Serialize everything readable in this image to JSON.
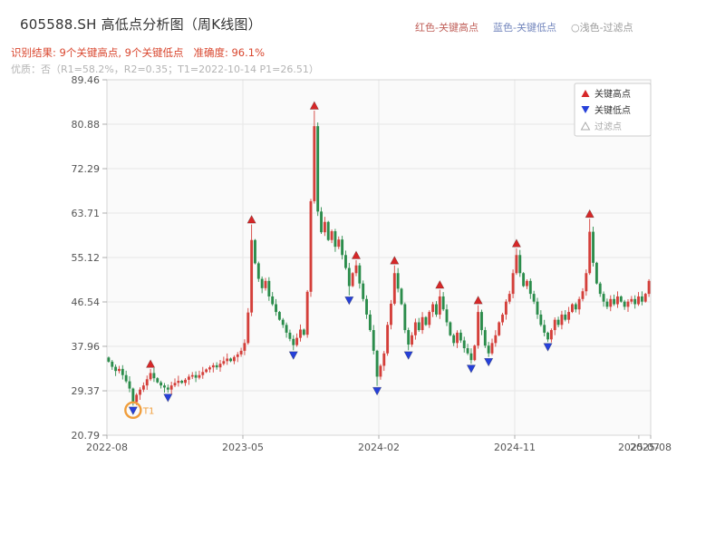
{
  "header": {
    "title": "605588.SH 高低点分析图（周K线图）",
    "marker_legend": {
      "red": "红色-关键高点",
      "blue": "蓝色-关键低点",
      "light": "○浅色-过滤点"
    },
    "result_line": "识别结果: 9个关键高点, 9个关键低点   准确度: 96.1%",
    "quality_line": "优质：否（R1=58.2%，R2=0.35；T1=2022-10-14 P1=26.51）"
  },
  "chart_data": {
    "type": "candlestick",
    "title": "605588.SH 高低点分析图（周K线图）",
    "ylim": [
      20.79,
      89.46
    ],
    "y_ticks": [
      "89.46",
      "80.88",
      "72.29",
      "63.71",
      "55.12",
      "46.54",
      "37.96",
      "29.37",
      "20.79"
    ],
    "x_ticks": [
      {
        "label": "2022-08",
        "week": 0
      },
      {
        "label": "2023-05",
        "week": 39
      },
      {
        "label": "2024-02",
        "week": 78
      },
      {
        "label": "2024-11",
        "week": 117
      },
      {
        "label": "2025-07",
        "week": 152.6
      },
      {
        "label": "2025-08",
        "week": 156
      }
    ],
    "weeks": 156,
    "first_open": 35.8,
    "closes": [
      35.0,
      34.0,
      33.2,
      33.6,
      32.4,
      31.2,
      29.8,
      27.2,
      28.6,
      29.6,
      30.4,
      31.6,
      32.8,
      31.8,
      31.0,
      30.4,
      30.0,
      29.6,
      30.4,
      30.9,
      31.3,
      30.9,
      31.5,
      32.1,
      32.4,
      31.9,
      32.4,
      33.0,
      33.5,
      33.9,
      34.3,
      33.9,
      34.6,
      35.1,
      35.6,
      35.1,
      35.9,
      36.4,
      37.1,
      38.6,
      44.5,
      58.5,
      54.0,
      51.0,
      49.2,
      50.6,
      47.6,
      46.1,
      44.6,
      43.1,
      42.1,
      40.6,
      39.4,
      38.2,
      39.6,
      41.2,
      40.2,
      48.5,
      66.0,
      80.5,
      64.0,
      60.0,
      62.0,
      58.5,
      60.2,
      57.2,
      58.6,
      55.6,
      53.1,
      49.6,
      52.1,
      53.6,
      50.1,
      47.1,
      44.1,
      41.1,
      37.1,
      32.1,
      34.2,
      36.6,
      42.1,
      46.2,
      52.1,
      49.1,
      46.1,
      41.1,
      38.3,
      40.1,
      42.6,
      41.1,
      43.6,
      42.1,
      44.6,
      46.1,
      44.1,
      47.6,
      45.1,
      42.6,
      40.1,
      38.6,
      40.6,
      39.1,
      37.6,
      36.6,
      35.3,
      38.1,
      44.6,
      41.1,
      38.1,
      36.6,
      38.6,
      40.1,
      42.6,
      44.1,
      46.6,
      48.1,
      52.1,
      55.6,
      52.1,
      49.6,
      50.6,
      48.1,
      46.6,
      44.1,
      42.1,
      40.6,
      39.3,
      41.1,
      43.1,
      42.1,
      44.1,
      43.1,
      44.6,
      46.1,
      45.1,
      47.1,
      48.6,
      52.1,
      60.1,
      54.1,
      50.1,
      48.1,
      46.6,
      45.6,
      47.1,
      46.1,
      47.6,
      46.6,
      45.6,
      46.6,
      47.1,
      46.1,
      47.6,
      46.6,
      48.1,
      50.6
    ],
    "key_highs": [
      {
        "week": 12,
        "price": 33.6
      },
      {
        "week": 41,
        "price": 61.5
      },
      {
        "week": 59,
        "price": 83.5
      },
      {
        "week": 71,
        "price": 54.6
      },
      {
        "week": 82,
        "price": 53.6
      },
      {
        "week": 95,
        "price": 48.9
      },
      {
        "week": 106,
        "price": 45.9
      },
      {
        "week": 117,
        "price": 56.9
      },
      {
        "week": 138,
        "price": 62.6
      }
    ],
    "key_lows": [
      {
        "week": 7,
        "price": 26.51,
        "label": "T1"
      },
      {
        "week": 17,
        "price": 29.0
      },
      {
        "week": 53,
        "price": 37.2
      },
      {
        "week": 69,
        "price": 47.8
      },
      {
        "week": 77,
        "price": 30.3
      },
      {
        "week": 86,
        "price": 37.2
      },
      {
        "week": 104,
        "price": 34.6
      },
      {
        "week": 109,
        "price": 35.9
      },
      {
        "week": 126,
        "price": 38.8
      }
    ],
    "legend": {
      "high": "关键高点",
      "low": "关键低点",
      "filtered": "过滤点"
    },
    "colors": {
      "up_candle": "#d43f3a",
      "down_candle": "#2b8c4b",
      "key_high": "#d62728",
      "key_low": "#2640d9",
      "filtered": "#aaaaaa",
      "t1": "#f09d3a",
      "grid": "#e7e7e7",
      "plot_bg": "#fafafa",
      "border": "#d5d5d5",
      "axis_text": "#555555"
    }
  }
}
